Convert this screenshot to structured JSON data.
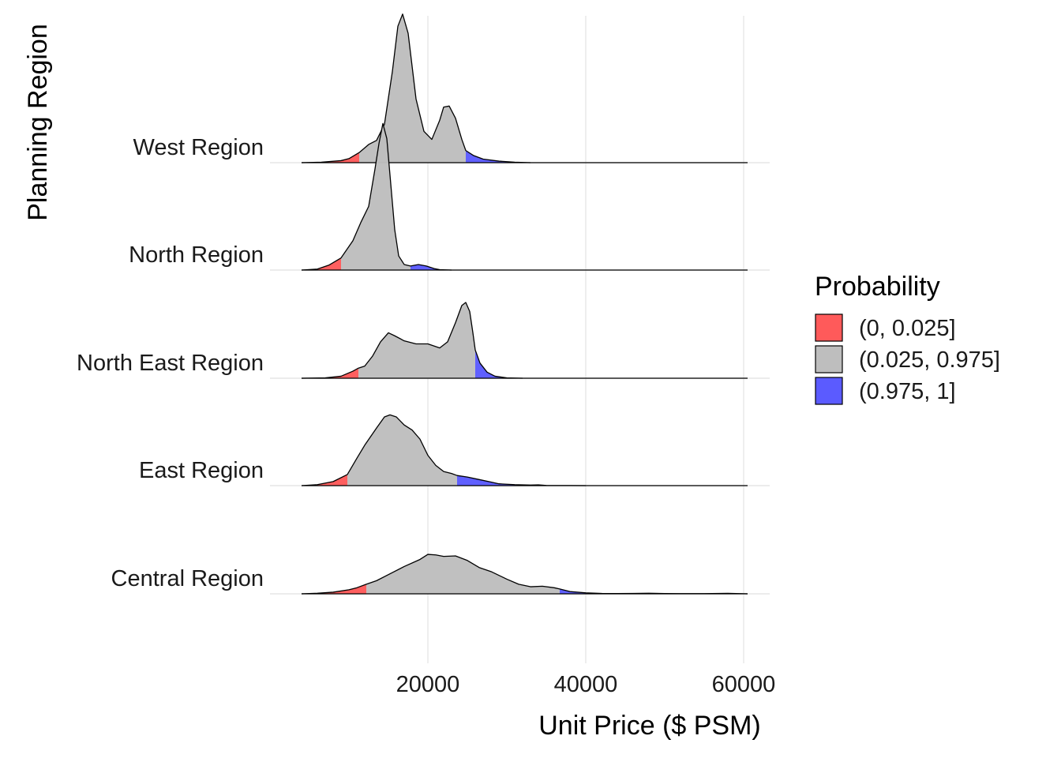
{
  "colors": {
    "low": "#ff5a5a",
    "mid": "#bebebe",
    "high": "#5b5bff",
    "grid": "#e6e6e6",
    "outline": "#000000"
  },
  "chart_data": {
    "type": "ridgeline",
    "title": "",
    "xlabel": "Unit Price ($ PSM)",
    "ylabel": "Planning Region",
    "xlim": [
      0,
      62000
    ],
    "x_ticks": [
      "20000",
      "40000",
      "60000"
    ],
    "x_tick_values": [
      20000,
      40000,
      60000
    ],
    "grid": true,
    "categories": [
      "Central Region",
      "East Region",
      "North East Region",
      "North Region",
      "West Region"
    ],
    "legend": {
      "title": "Probability",
      "placement": "right",
      "items": [
        {
          "label": "(0, 0.025]",
          "color_key": "low"
        },
        {
          "label": "(0.025, 0.975]",
          "color_key": "mid"
        },
        {
          "label": "(0.975, 1]",
          "color_key": "high"
        }
      ]
    },
    "series": [
      {
        "name": "Central Region",
        "quantile_025": 12200,
        "quantile_975": 36700,
        "density": [
          [
            4000,
            0
          ],
          [
            6000,
            0.006
          ],
          [
            8000,
            0.016
          ],
          [
            10000,
            0.04
          ],
          [
            11000,
            0.06
          ],
          [
            12200,
            0.095
          ],
          [
            13500,
            0.13
          ],
          [
            15000,
            0.19
          ],
          [
            17000,
            0.27
          ],
          [
            19000,
            0.34
          ],
          [
            20000,
            0.39
          ],
          [
            21000,
            0.385
          ],
          [
            22000,
            0.37
          ],
          [
            23500,
            0.375
          ],
          [
            25000,
            0.33
          ],
          [
            26500,
            0.26
          ],
          [
            28000,
            0.22
          ],
          [
            30000,
            0.145
          ],
          [
            31500,
            0.095
          ],
          [
            33000,
            0.07
          ],
          [
            34500,
            0.075
          ],
          [
            36000,
            0.06
          ],
          [
            36700,
            0.048
          ],
          [
            38000,
            0.022
          ],
          [
            40000,
            0.01
          ],
          [
            42000,
            0.004
          ],
          [
            44000,
            0.003
          ],
          [
            46000,
            0.004
          ],
          [
            48000,
            0.006
          ],
          [
            50000,
            0.003
          ],
          [
            52000,
            0.002
          ],
          [
            55000,
            0.002
          ],
          [
            58000,
            0.005
          ],
          [
            60000,
            0.001
          ],
          [
            60500,
            0
          ]
        ]
      },
      {
        "name": "East Region",
        "quantile_025": 9800,
        "quantile_975": 23700,
        "density": [
          [
            4000,
            0
          ],
          [
            6000,
            0.01
          ],
          [
            8000,
            0.04
          ],
          [
            9800,
            0.11
          ],
          [
            11000,
            0.27
          ],
          [
            12000,
            0.4
          ],
          [
            13500,
            0.57
          ],
          [
            14500,
            0.68
          ],
          [
            15200,
            0.7
          ],
          [
            16000,
            0.68
          ],
          [
            17000,
            0.6
          ],
          [
            18000,
            0.55
          ],
          [
            19000,
            0.46
          ],
          [
            20000,
            0.3
          ],
          [
            21000,
            0.2
          ],
          [
            22000,
            0.14
          ],
          [
            23000,
            0.12
          ],
          [
            23700,
            0.1
          ],
          [
            25000,
            0.085
          ],
          [
            26500,
            0.06
          ],
          [
            28000,
            0.035
          ],
          [
            29000,
            0.018
          ],
          [
            31000,
            0.01
          ],
          [
            33000,
            0.006
          ],
          [
            34000,
            0.008
          ],
          [
            35000,
            0.002
          ],
          [
            38000,
            0.001
          ],
          [
            40000,
            0
          ]
        ]
      },
      {
        "name": "North East Region",
        "quantile_025": 11200,
        "quantile_975": 26000,
        "density": [
          [
            4000,
            0
          ],
          [
            7000,
            0.004
          ],
          [
            9000,
            0.02
          ],
          [
            10500,
            0.07
          ],
          [
            11200,
            0.1
          ],
          [
            12000,
            0.12
          ],
          [
            13000,
            0.22
          ],
          [
            14000,
            0.36
          ],
          [
            15000,
            0.45
          ],
          [
            15800,
            0.42
          ],
          [
            17000,
            0.37
          ],
          [
            18500,
            0.34
          ],
          [
            20000,
            0.34
          ],
          [
            21500,
            0.3
          ],
          [
            22500,
            0.36
          ],
          [
            23500,
            0.55
          ],
          [
            24300,
            0.72
          ],
          [
            24800,
            0.75
          ],
          [
            25300,
            0.66
          ],
          [
            25700,
            0.45
          ],
          [
            26000,
            0.28
          ],
          [
            26600,
            0.15
          ],
          [
            27500,
            0.06
          ],
          [
            28500,
            0.02
          ],
          [
            30000,
            0.004
          ],
          [
            32000,
            0
          ]
        ]
      },
      {
        "name": "North Region",
        "quantile_025": 9000,
        "quantile_975": 17800,
        "density": [
          [
            4000,
            0
          ],
          [
            6000,
            0.01
          ],
          [
            7500,
            0.05
          ],
          [
            9000,
            0.12
          ],
          [
            10500,
            0.29
          ],
          [
            11500,
            0.47
          ],
          [
            12500,
            0.63
          ],
          [
            13300,
            1.0
          ],
          [
            13800,
            1.25
          ],
          [
            14300,
            1.45
          ],
          [
            14800,
            1.3
          ],
          [
            15300,
            0.85
          ],
          [
            15800,
            0.4
          ],
          [
            16300,
            0.14
          ],
          [
            17000,
            0.055
          ],
          [
            17800,
            0.04
          ],
          [
            18800,
            0.055
          ],
          [
            19800,
            0.04
          ],
          [
            20800,
            0.015
          ],
          [
            21500,
            0.004
          ],
          [
            23000,
            0
          ]
        ]
      },
      {
        "name": "West Region",
        "quantile_025": 11300,
        "quantile_975": 24800,
        "density": [
          [
            4000,
            0
          ],
          [
            6500,
            0.005
          ],
          [
            9000,
            0.02
          ],
          [
            10000,
            0.04
          ],
          [
            11300,
            0.1
          ],
          [
            12500,
            0.18
          ],
          [
            13500,
            0.22
          ],
          [
            14500,
            0.38
          ],
          [
            15500,
            0.9
          ],
          [
            16200,
            1.35
          ],
          [
            16800,
            1.47
          ],
          [
            17500,
            1.28
          ],
          [
            18500,
            0.63
          ],
          [
            19500,
            0.31
          ],
          [
            20500,
            0.23
          ],
          [
            21500,
            0.42
          ],
          [
            22000,
            0.55
          ],
          [
            22700,
            0.56
          ],
          [
            23500,
            0.44
          ],
          [
            24300,
            0.23
          ],
          [
            24800,
            0.12
          ],
          [
            25800,
            0.07
          ],
          [
            27000,
            0.035
          ],
          [
            29000,
            0.015
          ],
          [
            31000,
            0.005
          ],
          [
            33000,
            0
          ]
        ]
      }
    ]
  }
}
